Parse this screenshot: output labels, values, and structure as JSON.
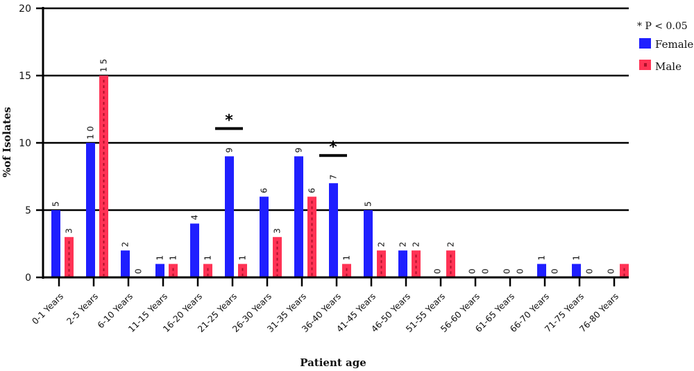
{
  "chart_data": {
    "type": "bar",
    "ylabel": "%of Isolates",
    "xlabel": "Patient age",
    "ylim": [
      0,
      20
    ],
    "yticks": [
      0,
      5,
      10,
      15,
      20
    ],
    "categories": [
      "0-1 Years",
      "2-5 Years",
      "6-10 Years",
      "11-15 Years",
      "16-20 Years",
      "21-25 Years",
      "26-30 Years",
      "31-35 Years",
      "36-40 Years",
      "41-45 Years",
      "46-50 Years",
      "51-55 Years",
      "56-60 Years",
      "61-65 Years",
      "66-70 Years",
      "71-75 Years",
      "76-80 Years"
    ],
    "series": [
      {
        "name": "Female",
        "color": "#1f1fff",
        "values": [
          5,
          10,
          2,
          1,
          4,
          9,
          6,
          9,
          7,
          5,
          2,
          0,
          0,
          0,
          1,
          1,
          0
        ]
      },
      {
        "name": "Male",
        "color": "#ff3355",
        "values": [
          3,
          15,
          0,
          1,
          1,
          1,
          3,
          6,
          1,
          2,
          2,
          2,
          0,
          0,
          0,
          0,
          1
        ]
      }
    ],
    "data_labels": {
      "Female": [
        "5",
        "1 0",
        "2",
        "1",
        "4",
        "9",
        "6",
        "9",
        "7",
        "5",
        "2",
        "0",
        "0",
        "0",
        "1",
        "1",
        "0"
      ],
      "Male": [
        "3",
        "1 5",
        "0",
        "1",
        "1",
        "1",
        "3",
        "6",
        "1",
        "2",
        "2",
        "2",
        "0",
        "0",
        "0",
        "0",
        ""
      ]
    },
    "significance": [
      {
        "category": "21-25 Years",
        "symbol": "*"
      },
      {
        "category": "36-40 Years",
        "symbol": "*"
      }
    ],
    "note": "* P < 0.05",
    "grid": "horizontal",
    "legend": "top-right"
  }
}
